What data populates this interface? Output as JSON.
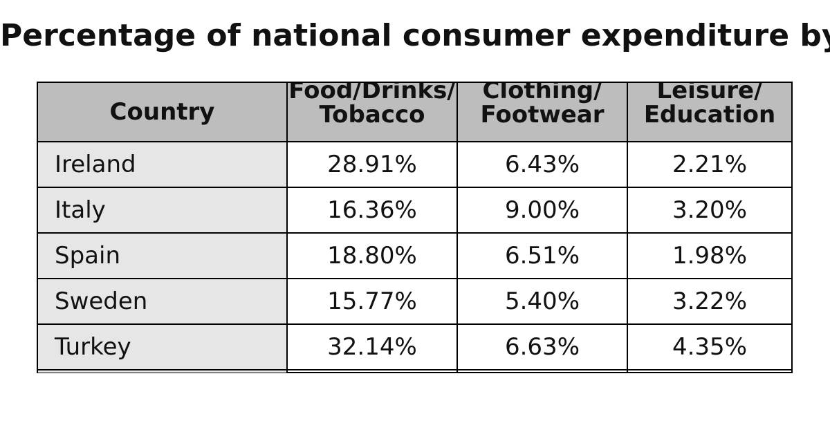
{
  "chart_data": {
    "type": "table",
    "title": "Percentage of national consumer expenditure by category",
    "columns": [
      "Country",
      "Food/Drinks/\nTobacco",
      "Clothing/\nFootwear",
      "Leisure/\nEducation"
    ],
    "rows": [
      {
        "country": "Ireland",
        "values": [
          "28.91%",
          "6.43%",
          "2.21%"
        ]
      },
      {
        "country": "Italy",
        "values": [
          "16.36%",
          "9.00%",
          "3.20%"
        ]
      },
      {
        "country": "Spain",
        "values": [
          "18.80%",
          "6.51%",
          "1.98%"
        ]
      },
      {
        "country": "Sweden",
        "values": [
          "15.77%",
          "5.40%",
          "3.22%"
        ]
      },
      {
        "country": "Turkey",
        "values": [
          "32.14%",
          "6.63%",
          "4.35%"
        ]
      }
    ],
    "colors": {
      "header_bg": "#bdbdbd",
      "first_column_bg": "#e6e6e6",
      "cell_bg": "#ffffff",
      "border": "#000000"
    }
  }
}
